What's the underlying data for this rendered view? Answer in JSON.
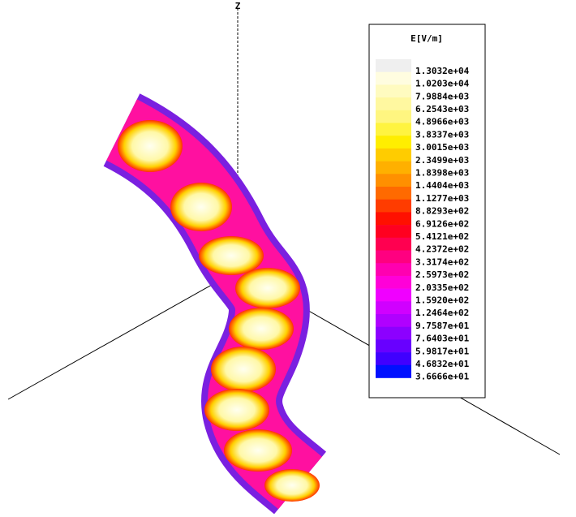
{
  "axis_label": "Z",
  "legend": {
    "title": "E[V/m]",
    "levels": [
      {
        "label": "1.3032e+04",
        "color": "#efefef"
      },
      {
        "label": "1.0203e+04",
        "color": "#fffde0"
      },
      {
        "label": "7.9884e+03",
        "color": "#fffbc0"
      },
      {
        "label": "6.2543e+03",
        "color": "#fff8a0"
      },
      {
        "label": "4.8966e+03",
        "color": "#fff680"
      },
      {
        "label": "3.8337e+03",
        "color": "#fff440"
      },
      {
        "label": "3.0015e+03",
        "color": "#ffee00"
      },
      {
        "label": "2.3499e+03",
        "color": "#ffcc00"
      },
      {
        "label": "1.8398e+03",
        "color": "#ffb000"
      },
      {
        "label": "1.4404e+03",
        "color": "#ff9000"
      },
      {
        "label": "1.1277e+03",
        "color": "#ff6a00"
      },
      {
        "label": "8.8293e+02",
        "color": "#ff3c00"
      },
      {
        "label": "6.9126e+02",
        "color": "#ff1000"
      },
      {
        "label": "5.4121e+02",
        "color": "#ff0020"
      },
      {
        "label": "4.2372e+02",
        "color": "#ff0050"
      },
      {
        "label": "3.3174e+02",
        "color": "#ff0080"
      },
      {
        "label": "2.5973e+02",
        "color": "#ff00b0"
      },
      {
        "label": "2.0335e+02",
        "color": "#ff00d8"
      },
      {
        "label": "1.5920e+02",
        "color": "#f000ff"
      },
      {
        "label": "1.2464e+02",
        "color": "#d000ff"
      },
      {
        "label": "9.7587e+01",
        "color": "#b000ff"
      },
      {
        "label": "7.6403e+01",
        "color": "#8c00ff"
      },
      {
        "label": "5.9817e+01",
        "color": "#6800ff"
      },
      {
        "label": "4.6832e+01",
        "color": "#4000ff"
      },
      {
        "label": "3.6666e+01",
        "color": "#0010ff"
      }
    ]
  }
}
